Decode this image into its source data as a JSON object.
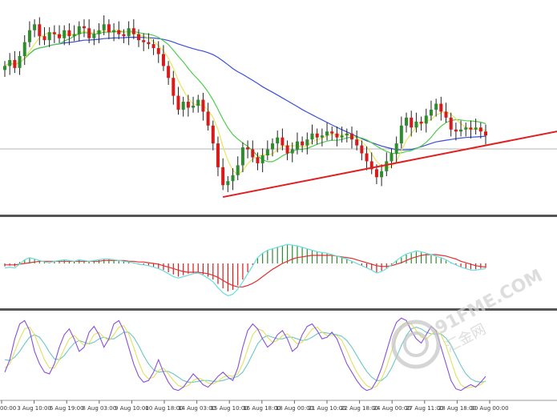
{
  "colors": {
    "background": "#ffffff",
    "separator": "#555555",
    "bull_candle": "#2e8b2e",
    "bear_candle": "#d81a1a",
    "ma_fast": "#e6e65a",
    "ma_mid": "#4ccc4c",
    "ma_slow": "#3a4fd8",
    "trendline": "#e02020",
    "price_level": "#b4b4b4",
    "macd_hist_pos": "#2e8b2e",
    "macd_hist_neg": "#d81a1a",
    "macd_line": "#68dddd",
    "signal_line": "#e03030",
    "stoch_main": "#8a4fd8",
    "stoch_signal": "#e0e060",
    "stoch_slow": "#6cc6c6",
    "watermark": "#c4c4c4"
  },
  "watermark": {
    "text_main": "91FME.COM",
    "text_sub": "汇金网"
  },
  "chart_data": [
    {
      "type": "candlestick",
      "panel": "price",
      "x_tick_labels": [
        "00:00",
        "3 Aug 10:00",
        "6 Aug 19:00",
        "8 Aug 03:00",
        "9 Aug 10:00",
        "10 Aug 18:00",
        "14 Aug 03:00",
        "15 Aug 10:00",
        "16 Aug 18:00",
        "18 Aug 00:00",
        "21 Aug 10:00",
        "22 Aug 18:00",
        "24 Aug 00:00",
        "27 Aug 11:00",
        "28 Aug 18:00",
        "30 Aug 00:00"
      ],
      "ylim": [
        0,
        100
      ],
      "candles_close": [
        70,
        73,
        69,
        75,
        82,
        88,
        91,
        85,
        83,
        87,
        86,
        84,
        88,
        85,
        86,
        90,
        89,
        84,
        86,
        88,
        91,
        87,
        88,
        86,
        85,
        89,
        86,
        83,
        82,
        81,
        79,
        76,
        70,
        64,
        55,
        48,
        52,
        49,
        50,
        53,
        47,
        40,
        31,
        19,
        10,
        12,
        15,
        20,
        29,
        28,
        24,
        21,
        25,
        28,
        31,
        34,
        30,
        26,
        28,
        32,
        30,
        33,
        36,
        34,
        35,
        37,
        36,
        34,
        35,
        36,
        33,
        30,
        26,
        22,
        18,
        14,
        17,
        22,
        26,
        31,
        40,
        44,
        39,
        42,
        41,
        45,
        48,
        51,
        47,
        44,
        38,
        37,
        38,
        39,
        38,
        39,
        37,
        35
      ],
      "moving_averages": [
        "ma_fast",
        "ma_mid",
        "ma_slow"
      ],
      "trendline": {
        "from": [
          44,
          4
        ],
        "to": [
          97,
          30
        ]
      }
    },
    {
      "type": "bar",
      "panel": "macd",
      "ylim": [
        -60,
        60
      ],
      "series": [
        {
          "values": [
            -4,
            -3,
            -4,
            2,
            5,
            7,
            6,
            4,
            2,
            1,
            3,
            4,
            5,
            4,
            3,
            5,
            4,
            3,
            4,
            5,
            6,
            6,
            5,
            4,
            3,
            2,
            1,
            -1,
            -2,
            -3,
            -5,
            -7,
            -9,
            -12,
            -15,
            -18,
            -16,
            -14,
            -13,
            -12,
            -15,
            -18,
            -22,
            -28,
            -34,
            -38,
            -36,
            -30,
            -22,
            -12,
            -2,
            8,
            14,
            18,
            20,
            22,
            24,
            26,
            25,
            24,
            22,
            20,
            18,
            16,
            15,
            14,
            12,
            10,
            8,
            6,
            3,
            0,
            -3,
            -6,
            -9,
            -12,
            -10,
            -6,
            -2,
            4,
            8,
            12,
            14,
            16,
            15,
            13,
            11,
            9,
            7,
            4,
            1,
            -2,
            -5,
            -7,
            -8,
            -8,
            -7,
            -6
          ]
        },
        {
          "values": [
            -2,
            -2,
            -2,
            -1,
            0,
            1,
            2,
            3,
            3,
            3,
            3,
            3,
            3,
            3,
            3,
            3,
            3,
            3,
            3,
            3,
            4,
            4,
            4,
            4,
            4,
            3,
            3,
            2,
            2,
            1,
            0,
            -1,
            -3,
            -5,
            -7,
            -9,
            -11,
            -12,
            -12,
            -12,
            -13,
            -14,
            -16,
            -19,
            -23,
            -27,
            -30,
            -32,
            -32,
            -30,
            -27,
            -23,
            -18,
            -13,
            -8,
            -4,
            0,
            3,
            6,
            8,
            9,
            10,
            11,
            11,
            11,
            11,
            11,
            10,
            9,
            8,
            7,
            5,
            3,
            1,
            -1,
            -3,
            -4,
            -4,
            -3,
            -1,
            1,
            4,
            7,
            9,
            11,
            12,
            12,
            12,
            11,
            10,
            8,
            6,
            3,
            1,
            -1,
            -3,
            -4,
            -5
          ]
        },
        {
          "values": [
            -6,
            -5,
            -6,
            -1,
            5,
            8,
            6,
            4,
            2,
            1,
            3,
            4,
            5,
            4,
            3,
            5,
            4,
            3,
            4,
            5,
            6,
            6,
            5,
            4,
            3,
            2,
            1,
            -1,
            -2,
            -3,
            -5,
            -7,
            -10,
            -14,
            -18,
            -20,
            -18,
            -16,
            -14,
            -13,
            -16,
            -20,
            -25,
            -33,
            -40,
            -44,
            -42,
            -35,
            -25,
            -14,
            -3,
            8,
            14,
            18,
            20,
            22,
            24,
            26,
            25,
            24,
            22,
            20,
            18,
            16,
            15,
            14,
            12,
            10,
            8,
            6,
            3,
            0,
            -3,
            -6,
            -9,
            -13,
            -11,
            -7,
            -2,
            4,
            9,
            13,
            15,
            17,
            16,
            14,
            12,
            10,
            8,
            5,
            1,
            -2,
            -5,
            -7,
            -9,
            -9,
            -8,
            -7
          ]
        }
      ]
    },
    {
      "type": "line",
      "panel": "stochastic",
      "ylim": [
        0,
        100
      ],
      "series": [
        {
          "values": [
            30,
            45,
            70,
            88,
            92,
            80,
            55,
            40,
            30,
            28,
            40,
            60,
            75,
            82,
            70,
            55,
            60,
            78,
            85,
            75,
            60,
            70,
            88,
            92,
            80,
            60,
            40,
            25,
            18,
            20,
            30,
            45,
            30,
            18,
            10,
            8,
            12,
            20,
            28,
            22,
            15,
            12,
            18,
            25,
            30,
            24,
            20,
            35,
            60,
            80,
            88,
            82,
            70,
            60,
            65,
            75,
            80,
            70,
            55,
            60,
            75,
            85,
            88,
            80,
            70,
            72,
            78,
            70,
            55,
            40,
            30,
            20,
            12,
            8,
            10,
            20,
            35,
            55,
            75,
            90,
            95,
            92,
            80,
            70,
            65,
            75,
            85,
            80,
            60,
            40,
            20,
            10,
            8,
            12,
            15,
            12,
            18,
            25
          ]
        },
        {
          "values": [
            35,
            40,
            55,
            70,
            82,
            84,
            75,
            60,
            45,
            35,
            35,
            45,
            58,
            70,
            74,
            68,
            62,
            65,
            75,
            78,
            72,
            68,
            75,
            84,
            86,
            76,
            60,
            42,
            28,
            22,
            24,
            32,
            35,
            28,
            20,
            14,
            12,
            14,
            20,
            23,
            21,
            17,
            16,
            19,
            24,
            26,
            25,
            28,
            40,
            58,
            75,
            82,
            80,
            72,
            66,
            68,
            74,
            76,
            70,
            64,
            66,
            74,
            82,
            84,
            78,
            74,
            74,
            74,
            68,
            56,
            42,
            30,
            21,
            14,
            11,
            13,
            22,
            36,
            55,
            72,
            85,
            90,
            88,
            80,
            72,
            70,
            75,
            80,
            75,
            62,
            44,
            26,
            15,
            11,
            12,
            13,
            15,
            20
          ]
        },
        {
          "values": [
            45,
            44,
            48,
            55,
            64,
            72,
            75,
            72,
            64,
            54,
            46,
            45,
            50,
            58,
            65,
            68,
            66,
            64,
            66,
            70,
            72,
            70,
            70,
            74,
            78,
            78,
            72,
            62,
            50,
            40,
            33,
            30,
            31,
            31,
            28,
            24,
            20,
            18,
            18,
            19,
            20,
            20,
            19,
            19,
            20,
            22,
            23,
            25,
            30,
            40,
            52,
            64,
            71,
            74,
            72,
            70,
            70,
            72,
            72,
            70,
            68,
            69,
            72,
            76,
            78,
            77,
            76,
            75,
            73,
            68,
            60,
            50,
            40,
            31,
            24,
            20,
            20,
            25,
            35,
            48,
            62,
            74,
            82,
            84,
            82,
            78,
            76,
            76,
            76,
            71,
            62,
            50,
            38,
            28,
            22,
            19,
            18,
            19
          ]
        }
      ]
    }
  ]
}
